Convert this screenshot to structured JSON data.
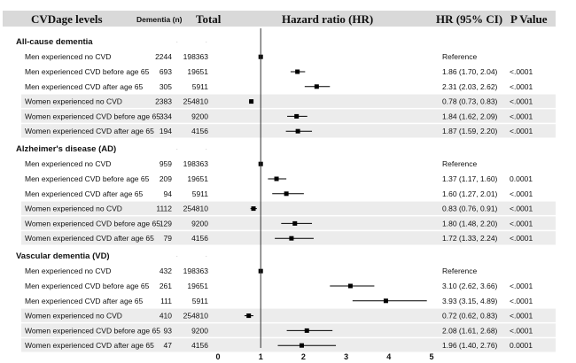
{
  "chart_data": {
    "type": "forest",
    "x_axis": {
      "ticks": [
        0,
        1,
        2,
        3,
        4,
        5
      ],
      "xlim": [
        0,
        5
      ],
      "reference_line": 1
    },
    "columns": {
      "level": "CVDage levels",
      "dementia_n": "Dementia (n)",
      "total": "Total",
      "hr_plot": "Hazard ratio (HR)",
      "hr_ci": "HR (95% CI)",
      "p_value": "P Value"
    },
    "sections": [
      {
        "title": "All-cause dementia",
        "rows": [
          {
            "label": "Men experienced no CVD",
            "n": "2244",
            "total": "198363",
            "hr": 1.0,
            "lo": null,
            "hi": null,
            "hr_text": "Reference",
            "p": "",
            "shaded": false
          },
          {
            "label": "Men experienced CVD before age 65",
            "n": "693",
            "total": "19651",
            "hr": 1.86,
            "lo": 1.7,
            "hi": 2.04,
            "hr_text": "1.86 (1.70, 2.04)",
            "p": "<.0001",
            "shaded": false
          },
          {
            "label": "Men experienced CVD after age 65",
            "n": "305",
            "total": "5911",
            "hr": 2.31,
            "lo": 2.03,
            "hi": 2.62,
            "hr_text": "2.31 (2.03, 2.62)",
            "p": "<.0001",
            "shaded": false
          },
          {
            "label": "Women experienced no CVD",
            "n": "2383",
            "total": "254810",
            "hr": 0.78,
            "lo": 0.73,
            "hi": 0.83,
            "hr_text": "0.78 (0.73, 0.83)",
            "p": "<.0001",
            "shaded": true
          },
          {
            "label": "Women experienced CVD before age 65",
            "n": "334",
            "total": "9200",
            "hr": 1.84,
            "lo": 1.62,
            "hi": 2.09,
            "hr_text": "1.84 (1.62, 2.09)",
            "p": "<.0001",
            "shaded": true
          },
          {
            "label": "Women experienced CVD after age 65",
            "n": "194",
            "total": "4156",
            "hr": 1.87,
            "lo": 1.59,
            "hi": 2.2,
            "hr_text": "1.87 (1.59, 2.20)",
            "p": "<.0001",
            "shaded": true
          }
        ]
      },
      {
        "title": "Alzheimer's disease (AD)",
        "rows": [
          {
            "label": "Men experienced no CVD",
            "n": "959",
            "total": "198363",
            "hr": 1.0,
            "lo": null,
            "hi": null,
            "hr_text": "Reference",
            "p": "",
            "shaded": false
          },
          {
            "label": "Men experienced CVD before age 65",
            "n": "209",
            "total": "19651",
            "hr": 1.37,
            "lo": 1.17,
            "hi": 1.6,
            "hr_text": "1.37 (1.17, 1.60)",
            "p": "0.0001",
            "shaded": false
          },
          {
            "label": "Men experienced CVD after age 65",
            "n": "94",
            "total": "5911",
            "hr": 1.6,
            "lo": 1.27,
            "hi": 2.01,
            "hr_text": "1.60 (1.27, 2.01)",
            "p": "<.0001",
            "shaded": false
          },
          {
            "label": "Women experienced no CVD",
            "n": "1112",
            "total": "254810",
            "hr": 0.83,
            "lo": 0.76,
            "hi": 0.91,
            "hr_text": "0.83 (0.76, 0.91)",
            "p": "<.0001",
            "shaded": true
          },
          {
            "label": "Women experienced CVD before age 65",
            "n": "129",
            "total": "9200",
            "hr": 1.8,
            "lo": 1.48,
            "hi": 2.2,
            "hr_text": "1.80 (1.48, 2.20)",
            "p": "<.0001",
            "shaded": true
          },
          {
            "label": "Women experienced CVD after age 65",
            "n": "79",
            "total": "4156",
            "hr": 1.72,
            "lo": 1.33,
            "hi": 2.24,
            "hr_text": "1.72 (1.33, 2.24)",
            "p": "<.0001",
            "shaded": true
          }
        ]
      },
      {
        "title": "Vascular dementia (VD)",
        "rows": [
          {
            "label": "Men experienced no CVD",
            "n": "432",
            "total": "198363",
            "hr": 1.0,
            "lo": null,
            "hi": null,
            "hr_text": "Reference",
            "p": "",
            "shaded": false
          },
          {
            "label": "Men experienced CVD before age 65",
            "n": "261",
            "total": "19651",
            "hr": 3.1,
            "lo": 2.62,
            "hi": 3.66,
            "hr_text": "3.10 (2.62, 3.66)",
            "p": "<.0001",
            "shaded": false
          },
          {
            "label": "Men experienced CVD after age 65",
            "n": "111",
            "total": "5911",
            "hr": 3.93,
            "lo": 3.15,
            "hi": 4.89,
            "hr_text": "3.93 (3.15, 4.89)",
            "p": "<.0001",
            "shaded": false
          },
          {
            "label": "Women experienced no CVD",
            "n": "410",
            "total": "254810",
            "hr": 0.72,
            "lo": 0.62,
            "hi": 0.83,
            "hr_text": "0.72 (0.62, 0.83)",
            "p": "<.0001",
            "shaded": true
          },
          {
            "label": "Women experienced CVD before age 65",
            "n": "93",
            "total": "9200",
            "hr": 2.08,
            "lo": 1.61,
            "hi": 2.68,
            "hr_text": "2.08 (1.61, 2.68)",
            "p": "<.0001",
            "shaded": true
          },
          {
            "label": "Women experienced CVD after age 65",
            "n": "47",
            "total": "4156",
            "hr": 1.96,
            "lo": 1.4,
            "hi": 2.76,
            "hr_text": "1.96 (1.40, 2.76)",
            "p": "0.0001",
            "shaded": true
          }
        ]
      }
    ],
    "placeholder_mark": ".",
    "colors": {
      "header_bg": "#d9d9d9",
      "row_shade": "#ececec",
      "marker": "#000000",
      "reference_line": "#333333"
    }
  }
}
